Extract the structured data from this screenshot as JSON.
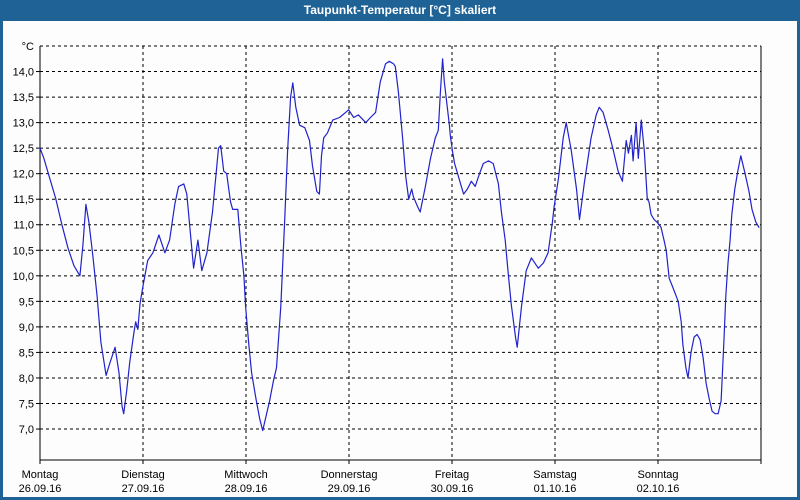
{
  "window": {
    "title": "Taupunkt-Temperatur [°C] skaliert"
  },
  "colors": {
    "titlebar": "#1f6296",
    "frame_border": "#1f6296",
    "background": "#fcfdfc",
    "grid": "#000000",
    "line": "#2222cc"
  },
  "chart_data": {
    "type": "line",
    "title": "Taupunkt-Temperatur [°C] skaliert",
    "y_unit_label": "°C",
    "ylim": [
      7.0,
      14.5
    ],
    "ytick_step": 0.5,
    "ytick_labels": [
      "14,0",
      "13,5",
      "13,0",
      "12,5",
      "12,0",
      "11,5",
      "11,0",
      "10,5",
      "10,0",
      "9,5",
      "9,0",
      "8,5",
      "8,0",
      "7,5",
      "7,0"
    ],
    "grid": "dashed",
    "legend": "none",
    "x_hours_range": [
      0,
      168
    ],
    "x_days": [
      {
        "name": "Montag",
        "date": "26.09.16"
      },
      {
        "name": "Dienstag",
        "date": "27.09.16"
      },
      {
        "name": "Mittwoch",
        "date": "28.09.16"
      },
      {
        "name": "Donnerstag",
        "date": "29.09.16"
      },
      {
        "name": "Freitag",
        "date": "30.09.16"
      },
      {
        "name": "Samstag",
        "date": "01.10.16"
      },
      {
        "name": "Sonntag",
        "date": "02.10.16"
      }
    ],
    "series": [
      {
        "name": "Taupunkt",
        "color": "#2222cc",
        "points": [
          [
            0,
            12.5
          ],
          [
            0.9,
            12.3
          ],
          [
            2.3,
            11.9
          ],
          [
            3.7,
            11.5
          ],
          [
            5.1,
            11.0
          ],
          [
            6.5,
            10.55
          ],
          [
            7.9,
            10.2
          ],
          [
            9.3,
            10.0
          ],
          [
            10,
            10.6
          ],
          [
            10.7,
            11.4
          ],
          [
            11.4,
            11.05
          ],
          [
            12.3,
            10.4
          ],
          [
            13.3,
            9.6
          ],
          [
            14.2,
            8.7
          ],
          [
            15.4,
            8.05
          ],
          [
            16.3,
            8.3
          ],
          [
            17.5,
            8.6
          ],
          [
            18.4,
            8.1
          ],
          [
            19.1,
            7.45
          ],
          [
            19.5,
            7.3
          ],
          [
            20.2,
            7.75
          ],
          [
            20.9,
            8.3
          ],
          [
            21.9,
            8.9
          ],
          [
            22.3,
            9.1
          ],
          [
            22.8,
            8.95
          ],
          [
            23.3,
            9.45
          ],
          [
            24,
            9.8
          ],
          [
            25.1,
            10.3
          ],
          [
            26.3,
            10.45
          ],
          [
            27.7,
            10.8
          ],
          [
            29.1,
            10.45
          ],
          [
            30.2,
            10.7
          ],
          [
            31.4,
            11.4
          ],
          [
            32.3,
            11.75
          ],
          [
            33.5,
            11.8
          ],
          [
            34.2,
            11.6
          ],
          [
            35.8,
            10.15
          ],
          [
            36.8,
            10.7
          ],
          [
            37.7,
            10.1
          ],
          [
            38.9,
            10.45
          ],
          [
            40.2,
            11.25
          ],
          [
            41.6,
            12.5
          ],
          [
            42.1,
            12.55
          ],
          [
            42.8,
            12.05
          ],
          [
            43.5,
            12.0
          ],
          [
            44.4,
            11.45
          ],
          [
            44.9,
            11.3
          ],
          [
            46.1,
            11.3
          ],
          [
            46.8,
            10.6
          ],
          [
            47.5,
            10.0
          ],
          [
            47.9,
            9.4
          ],
          [
            48.6,
            8.7
          ],
          [
            49.3,
            8.1
          ],
          [
            50.3,
            7.6
          ],
          [
            51.2,
            7.2
          ],
          [
            51.9,
            6.97
          ],
          [
            52.8,
            7.3
          ],
          [
            53.5,
            7.55
          ],
          [
            54.4,
            7.95
          ],
          [
            55.1,
            8.2
          ],
          [
            56.1,
            9.4
          ],
          [
            57,
            11.05
          ],
          [
            57.7,
            12.45
          ],
          [
            58.4,
            13.5
          ],
          [
            58.9,
            13.78
          ],
          [
            59.6,
            13.3
          ],
          [
            60.5,
            12.95
          ],
          [
            61.7,
            12.9
          ],
          [
            62.8,
            12.65
          ],
          [
            63.5,
            12.15
          ],
          [
            64.5,
            11.65
          ],
          [
            65.1,
            11.6
          ],
          [
            65.6,
            12.35
          ],
          [
            66.1,
            12.7
          ],
          [
            67,
            12.8
          ],
          [
            68.2,
            13.05
          ],
          [
            69.8,
            13.1
          ],
          [
            71.2,
            13.2
          ],
          [
            71.9,
            13.25
          ],
          [
            73.1,
            13.1
          ],
          [
            74.2,
            13.15
          ],
          [
            75.9,
            13.0
          ],
          [
            77,
            13.1
          ],
          [
            78.2,
            13.2
          ],
          [
            79.3,
            13.8
          ],
          [
            80.5,
            14.15
          ],
          [
            81.4,
            14.2
          ],
          [
            82.4,
            14.15
          ],
          [
            82.8,
            14.1
          ],
          [
            83.5,
            13.6
          ],
          [
            84.5,
            12.7
          ],
          [
            85.2,
            11.95
          ],
          [
            85.9,
            11.5
          ],
          [
            86.6,
            11.7
          ],
          [
            87,
            11.55
          ],
          [
            88,
            11.35
          ],
          [
            88.6,
            11.25
          ],
          [
            89.8,
            11.75
          ],
          [
            91,
            12.3
          ],
          [
            92.1,
            12.7
          ],
          [
            92.8,
            12.85
          ],
          [
            93.3,
            13.6
          ],
          [
            93.8,
            14.25
          ],
          [
            94.2,
            13.8
          ],
          [
            94.9,
            13.3
          ],
          [
            95.4,
            12.95
          ],
          [
            95.6,
            12.75
          ],
          [
            96.1,
            12.45
          ],
          [
            96.6,
            12.2
          ],
          [
            97.3,
            12.0
          ],
          [
            98,
            11.8
          ],
          [
            98.7,
            11.6
          ],
          [
            99.6,
            11.7
          ],
          [
            100.5,
            11.85
          ],
          [
            101.4,
            11.75
          ],
          [
            102.4,
            12.0
          ],
          [
            103.3,
            12.2
          ],
          [
            104.5,
            12.25
          ],
          [
            105.6,
            12.2
          ],
          [
            106.8,
            11.8
          ],
          [
            107.5,
            11.25
          ],
          [
            108.4,
            10.7
          ],
          [
            109.1,
            10.05
          ],
          [
            109.8,
            9.45
          ],
          [
            110.8,
            8.8
          ],
          [
            111.2,
            8.6
          ],
          [
            112.2,
            9.4
          ],
          [
            113.3,
            10.1
          ],
          [
            114.5,
            10.35
          ],
          [
            116.1,
            10.15
          ],
          [
            117.3,
            10.25
          ],
          [
            118.4,
            10.45
          ],
          [
            119.4,
            11.05
          ],
          [
            119.8,
            11.35
          ],
          [
            120.8,
            11.9
          ],
          [
            121.9,
            12.7
          ],
          [
            122.6,
            13.0
          ],
          [
            123.8,
            12.45
          ],
          [
            125,
            11.7
          ],
          [
            125.7,
            11.1
          ],
          [
            126.8,
            11.8
          ],
          [
            128.4,
            12.7
          ],
          [
            129.6,
            13.15
          ],
          [
            130.3,
            13.3
          ],
          [
            131.2,
            13.2
          ],
          [
            132.4,
            12.85
          ],
          [
            133.6,
            12.45
          ],
          [
            134.7,
            12.05
          ],
          [
            135.7,
            11.85
          ],
          [
            136.6,
            12.65
          ],
          [
            137.1,
            12.4
          ],
          [
            137.8,
            12.75
          ],
          [
            138.2,
            12.25
          ],
          [
            138.9,
            13.0
          ],
          [
            139.4,
            12.3
          ],
          [
            140.1,
            13.05
          ],
          [
            140.8,
            12.45
          ],
          [
            141.5,
            11.5
          ],
          [
            141.9,
            11.45
          ],
          [
            142.4,
            11.2
          ],
          [
            143.1,
            11.1
          ],
          [
            143.8,
            11.05
          ],
          [
            144.7,
            10.95
          ],
          [
            145.4,
            10.7
          ],
          [
            145.9,
            10.5
          ],
          [
            146.6,
            9.95
          ],
          [
            147.1,
            9.85
          ],
          [
            147.8,
            9.7
          ],
          [
            148.7,
            9.5
          ],
          [
            149.4,
            9.1
          ],
          [
            149.8,
            8.65
          ],
          [
            150.5,
            8.2
          ],
          [
            151,
            8.0
          ],
          [
            151.7,
            8.5
          ],
          [
            152.4,
            8.8
          ],
          [
            153.1,
            8.85
          ],
          [
            153.8,
            8.75
          ],
          [
            154.5,
            8.4
          ],
          [
            155.2,
            7.9
          ],
          [
            155.9,
            7.6
          ],
          [
            156.6,
            7.35
          ],
          [
            157.3,
            7.3
          ],
          [
            158,
            7.3
          ],
          [
            158.7,
            7.55
          ],
          [
            159.4,
            8.8
          ],
          [
            159.8,
            9.6
          ],
          [
            160.3,
            10.25
          ],
          [
            160.8,
            10.7
          ],
          [
            161.2,
            11.2
          ],
          [
            161.9,
            11.7
          ],
          [
            162.6,
            12.05
          ],
          [
            163.3,
            12.35
          ],
          [
            164.3,
            12.0
          ],
          [
            165.2,
            11.65
          ],
          [
            165.9,
            11.3
          ],
          [
            166.8,
            11.05
          ],
          [
            167.5,
            10.95
          ]
        ]
      }
    ]
  }
}
